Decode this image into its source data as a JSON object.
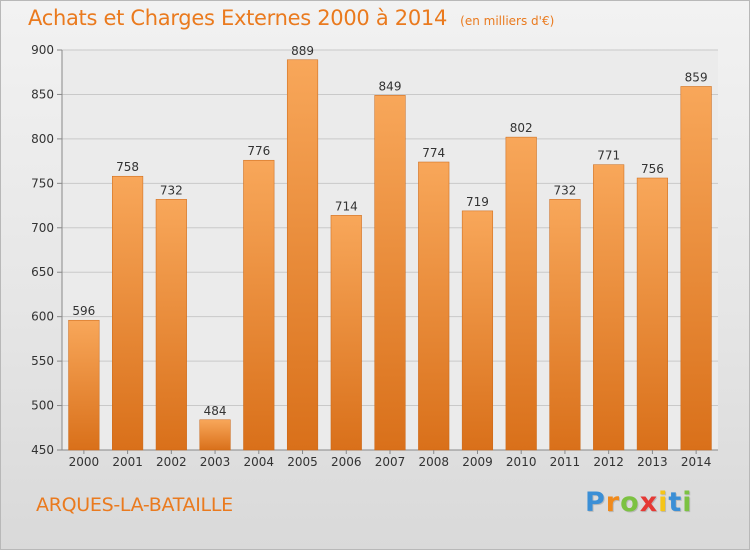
{
  "header": {
    "title": "Achats et Charges Externes 2000 à 2014",
    "subtitle": "(en milliers d'€)"
  },
  "footer": {
    "commune": "ARQUES-LA-BATAILLE"
  },
  "logo": {
    "letters": [
      "P",
      "r",
      "o",
      "x",
      "i",
      "t",
      "i"
    ],
    "colors": [
      "#3b8fd6",
      "#f08a1c",
      "#7cc242",
      "#e53935",
      "#f5c518",
      "#3b8fd6",
      "#7cc242"
    ]
  },
  "colors": {
    "title": "#ea7a1e",
    "bar_top": "#f8a75a",
    "bar_bottom": "#d9701a",
    "grid": "#c9c9c9",
    "axis": "#888888",
    "text": "#333333"
  },
  "chart_data": {
    "type": "bar",
    "title": "Achats et Charges Externes 2000 à 2014",
    "subtitle": "(en milliers d'€)",
    "categories": [
      "2000",
      "2001",
      "2002",
      "2003",
      "2004",
      "2005",
      "2006",
      "2007",
      "2008",
      "2009",
      "2010",
      "2011",
      "2012",
      "2013",
      "2014"
    ],
    "values": [
      596,
      758,
      732,
      484,
      776,
      889,
      714,
      849,
      774,
      719,
      802,
      732,
      771,
      756,
      859
    ],
    "ylim": [
      450,
      900
    ],
    "yticks": [
      450,
      500,
      550,
      600,
      650,
      700,
      750,
      800,
      850,
      900
    ],
    "grid": true,
    "data_labels": true
  }
}
